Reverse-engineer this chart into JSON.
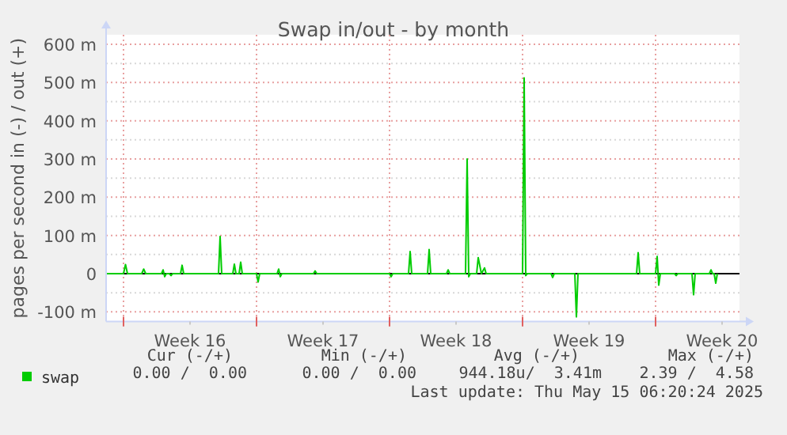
{
  "chart_data": {
    "type": "line",
    "title": "Swap in/out - by month",
    "ylabel": "pages per second in (-) / out (+)",
    "xlim": [
      "2025-04-13T02:00",
      "2025-05-16T10:00"
    ],
    "xticks": [
      {
        "value": "2025-04-14T00:00",
        "label": null
      },
      {
        "value": "2025-04-17T12:00",
        "label": "Week 16"
      },
      {
        "value": "2025-04-21T00:00",
        "label": null
      },
      {
        "value": "2025-04-24T12:00",
        "label": "Week 17"
      },
      {
        "value": "2025-04-28T00:00",
        "label": null
      },
      {
        "value": "2025-05-01T12:00",
        "label": "Week 18"
      },
      {
        "value": "2025-05-05T00:00",
        "label": null
      },
      {
        "value": "2025-05-08T12:00",
        "label": "Week 19"
      },
      {
        "value": "2025-05-12T00:00",
        "label": null
      },
      {
        "value": "2025-05-15T12:00",
        "label": "Week 20"
      }
    ],
    "ylim": [
      -125,
      625
    ],
    "yticks": [
      {
        "value": -100,
        "label": "-100 m"
      },
      {
        "value": -50,
        "label": null
      },
      0,
      {
        "value": 50,
        "label": null
      },
      {
        "value": 100,
        "label": "100 m"
      },
      {
        "value": 150,
        "label": null
      },
      {
        "value": 200,
        "label": "200 m"
      },
      {
        "value": 250,
        "label": null
      },
      {
        "value": 300,
        "label": "300 m"
      },
      {
        "value": 350,
        "label": null
      },
      {
        "value": 400,
        "label": "400 m"
      },
      {
        "value": 450,
        "label": null
      },
      {
        "value": 500,
        "label": "500 m"
      },
      {
        "value": 550,
        "label": null
      },
      {
        "value": 600,
        "label": "600 m"
      }
    ],
    "grid": true,
    "legend": "bottom",
    "marker": "none",
    "line_style": "solid",
    "ref_lines": [
      {
        "axis": "y",
        "value": 0,
        "color": "#000000"
      }
    ],
    "series": [
      {
        "name": "swap",
        "color": "#00cc00",
        "x": [
          "2025-04-13T02:00",
          "2025-04-14T00:00",
          "2025-04-14T02:30",
          "2025-04-14T05:00",
          "2025-04-14T23:00",
          "2025-04-15T01:30",
          "2025-04-15T04:00",
          "2025-04-16T00:00",
          "2025-04-16T02:00",
          "2025-04-16T04:00",
          "2025-04-16T06:00",
          "2025-04-16T10:00",
          "2025-04-16T12:00",
          "2025-04-16T14:00",
          "2025-04-17T00:00",
          "2025-04-17T02:00",
          "2025-04-17T04:00",
          "2025-04-19T00:00",
          "2025-04-19T02:00",
          "2025-04-19T04:00",
          "2025-04-19T18:00",
          "2025-04-19T20:00",
          "2025-04-19T22:00",
          "2025-04-20T02:00",
          "2025-04-20T04:00",
          "2025-04-20T06:00",
          "2025-04-21T00:00",
          "2025-04-21T02:00",
          "2025-04-21T04:00",
          "2025-04-22T02:00",
          "2025-04-22T04:00",
          "2025-04-22T06:00",
          "2025-04-22T08:00",
          "2025-04-24T00:00",
          "2025-04-24T02:00",
          "2025-04-24T04:00",
          "2025-04-28T00:00",
          "2025-04-28T02:00",
          "2025-04-28T04:00",
          "2025-04-29T00:00",
          "2025-04-29T02:00",
          "2025-04-29T04:00",
          "2025-04-30T00:00",
          "2025-04-30T02:00",
          "2025-04-30T04:00",
          "2025-05-01T00:00",
          "2025-05-01T02:00",
          "2025-05-01T04:00",
          "2025-05-02T00:00",
          "2025-05-02T02:00",
          "2025-05-02T04:00",
          "2025-05-02T06:00",
          "2025-05-02T14:00",
          "2025-05-02T16:00",
          "2025-05-02T20:00",
          "2025-05-03T00:00",
          "2025-05-03T02:00",
          "2025-05-05T00:00",
          "2025-05-05T02:00",
          "2025-05-05T04:00",
          "2025-05-05T06:00",
          "2025-05-06T12:00",
          "2025-05-06T14:00",
          "2025-05-06T16:00",
          "2025-05-07T18:00",
          "2025-05-07T20:00",
          "2025-05-07T22:00",
          "2025-05-11T00:00",
          "2025-05-11T02:00",
          "2025-05-11T04:00",
          "2025-05-12T00:00",
          "2025-05-12T02:00",
          "2025-05-12T04:00",
          "2025-05-12T06:00",
          "2025-05-13T00:00",
          "2025-05-13T02:00",
          "2025-05-13T04:00",
          "2025-05-13T22:00",
          "2025-05-14T00:00",
          "2025-05-14T02:00",
          "2025-05-14T20:00",
          "2025-05-14T22:00",
          "2025-05-15T00:00",
          "2025-05-15T02:00",
          "2025-05-15T04:00",
          "2025-05-15T06:00"
        ],
        "values": [
          0,
          0,
          24,
          0,
          0,
          12,
          0,
          0,
          10,
          -8,
          0,
          0,
          -5,
          0,
          0,
          22,
          0,
          0,
          97,
          0,
          0,
          25,
          0,
          0,
          30,
          0,
          0,
          -22,
          0,
          0,
          12,
          -8,
          0,
          0,
          7,
          0,
          0,
          -8,
          0,
          0,
          58,
          0,
          0,
          63,
          0,
          0,
          10,
          0,
          0,
          300,
          -8,
          0,
          0,
          42,
          0,
          15,
          0,
          0,
          512,
          -5,
          0,
          0,
          -10,
          0,
          0,
          -113,
          0,
          0,
          55,
          0,
          0,
          45,
          -30,
          0,
          0,
          -5,
          0,
          0,
          -55,
          0,
          0,
          10,
          0,
          0,
          -25,
          0
        ]
      }
    ],
    "annotations": [
      "Cur (-/+)",
      "Min (-/+)",
      "Avg (-/+)",
      "Max (-/+)",
      "0.00 /  0.00",
      "0.00 /  0.00",
      "944.18u/  3.41m",
      "2.39 /  4.58",
      "Last update: Thu May 15 06:20:24 2025"
    ]
  }
}
